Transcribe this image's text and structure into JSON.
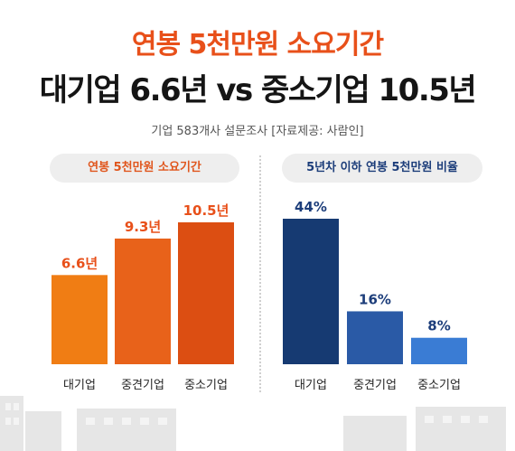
{
  "header": {
    "title": "연봉 5천만원 소요기간",
    "headline": "대기업 6.6년 vs 중소기업 10.5년",
    "source_line": "기업 583개사 설문조사  [자료제공: 사람인]"
  },
  "colors": {
    "accent_orange": "#e8501a",
    "accent_navy": "#1c3d7a",
    "bars_left": [
      "#f07d14",
      "#e8621a",
      "#dc4e12"
    ],
    "bars_right": [
      "#163a72",
      "#2a5aa6",
      "#3a7cd4"
    ]
  },
  "chart_data": [
    {
      "type": "bar",
      "title": "연봉 5천만원 소요기간",
      "categories": [
        "대기업",
        "중견기업",
        "중소기업"
      ],
      "values": [
        6.6,
        9.3,
        10.5
      ],
      "data_labels": [
        "6.6년",
        "9.3년",
        "10.5년"
      ],
      "unit": "년"
    },
    {
      "type": "bar",
      "title": "5년차 이하 연봉 5천만원 비율",
      "categories": [
        "대기업",
        "중견기업",
        "중소기업"
      ],
      "values": [
        44,
        16,
        8
      ],
      "data_labels": [
        "44%",
        "16%",
        "8%"
      ],
      "unit": "%"
    }
  ]
}
